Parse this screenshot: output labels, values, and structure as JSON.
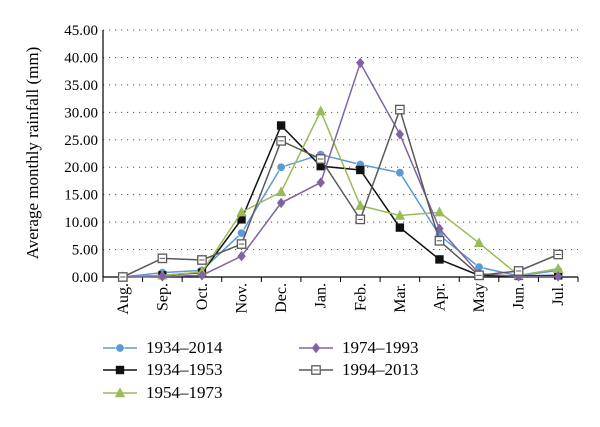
{
  "chart_data": {
    "type": "line",
    "title": "",
    "ylabel": "Average monthly rainfall (mm)",
    "xlabel": "",
    "categories": [
      "Aug.",
      "Sep.",
      "Oct.",
      "Nov.",
      "Dec.",
      "Jan.",
      "Feb.",
      "Mar.",
      "Apr.",
      "May",
      "Jun.",
      "Jul."
    ],
    "ylim": [
      0,
      45
    ],
    "ytick_values": [
      0,
      5,
      10,
      15,
      20,
      25,
      30,
      35,
      40,
      45
    ],
    "ytick_labels": [
      "0.00",
      "5.00",
      "10.00",
      "15.00",
      "20.00",
      "25.00",
      "30.00",
      "35.00",
      "40.00",
      "45.00"
    ],
    "grid": "horizontal dotted",
    "legend_placement": "bottom",
    "series": [
      {
        "name": "1934–2014",
        "color": "#5b9bd5",
        "marker": "circle",
        "values": [
          0.0,
          0.8,
          1.2,
          8.0,
          20.0,
          22.3,
          20.5,
          19.0,
          7.6,
          1.8,
          0.2,
          1.2
        ]
      },
      {
        "name": "1934–1953",
        "color": "#111111",
        "marker": "square",
        "values": [
          0.0,
          0.3,
          0.8,
          10.5,
          27.6,
          20.2,
          19.5,
          9.0,
          3.2,
          0.3,
          0.2,
          0.3
        ]
      },
      {
        "name": "1954–1973",
        "color": "#9bbb59",
        "marker": "triangle",
        "values": [
          0.0,
          0.3,
          0.9,
          11.8,
          15.5,
          30.2,
          13.0,
          11.2,
          11.8,
          6.2,
          0.3,
          1.5
        ]
      },
      {
        "name": "1974–1993",
        "color": "#8064a2",
        "marker": "diamond",
        "values": [
          0.0,
          0.1,
          0.3,
          3.8,
          13.5,
          17.2,
          39.0,
          26.0,
          8.8,
          0.6,
          0.1,
          0.1
        ]
      },
      {
        "name": "1994–2013",
        "color": "#595959",
        "marker": "hollow-square",
        "values": [
          0.0,
          3.4,
          3.1,
          6.0,
          24.8,
          21.5,
          10.5,
          30.5,
          6.6,
          0.3,
          1.1,
          4.1
        ]
      }
    ]
  }
}
